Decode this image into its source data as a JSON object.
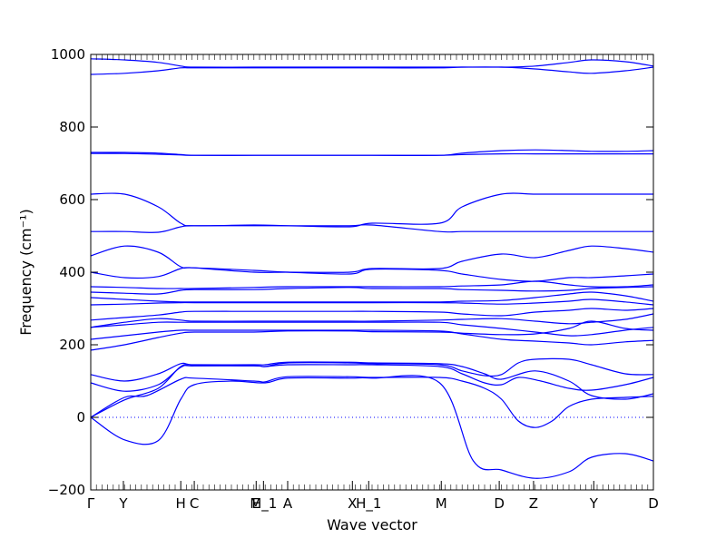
{
  "chart_data": {
    "type": "line",
    "title": "",
    "xlabel": "Wave vector",
    "ylabel": "Frequency (cm⁻¹)",
    "ylim": [
      -200,
      1000
    ],
    "yticks": [
      -200,
      0,
      200,
      400,
      600,
      800,
      1000
    ],
    "ytick_labels": [
      "−200",
      "0",
      "200",
      "400",
      "600",
      "800",
      "1000"
    ],
    "grid": false,
    "line_color": "#0000ff",
    "zero_line_color": "#0000ff",
    "x_points": [
      {
        "label": "Γ",
        "x": 0.0
      },
      {
        "label": "Y",
        "x": 0.058
      },
      {
        "label": "H",
        "x": 0.16
      },
      {
        "label": "C",
        "x": 0.184
      },
      {
        "label": "E",
        "x": 0.294
      },
      {
        "label": "M_1",
        "x": 0.307
      },
      {
        "label": "A",
        "x": 0.35
      },
      {
        "label": "X",
        "x": 0.465
      },
      {
        "label": "H_1",
        "x": 0.494
      },
      {
        "label": "M",
        "x": 0.623
      },
      {
        "label": "D",
        "x": 0.726
      },
      {
        "label": "Z",
        "x": 0.787
      },
      {
        "label": "Y",
        "x": 0.894
      },
      {
        "label": "D",
        "x": 1.0
      }
    ],
    "series": [
      {
        "x": [
          0,
          0.06,
          0.12,
          0.16,
          0.184,
          0.25,
          0.31,
          0.35,
          0.46,
          0.5,
          0.62,
          0.68,
          0.73,
          0.79,
          0.85,
          0.89,
          0.95,
          1.0
        ],
        "values": [
          0,
          -62,
          -64,
          50,
          90,
          100,
          95,
          108,
          108,
          108,
          95,
          -120,
          -145,
          -168,
          -150,
          -110,
          -100,
          -120
        ]
      },
      {
        "x": [
          0,
          0.06,
          0.1,
          0.16,
          0.184,
          0.29,
          0.31,
          0.35,
          0.46,
          0.5,
          0.62,
          0.66,
          0.7,
          0.73,
          0.76,
          0.79,
          0.82,
          0.85,
          0.89,
          0.95,
          1.0
        ],
        "values": [
          0,
          55,
          60,
          105,
          108,
          100,
          98,
          112,
          112,
          110,
          110,
          100,
          80,
          50,
          -10,
          -28,
          -10,
          30,
          50,
          55,
          58
        ]
      },
      {
        "x": [
          0,
          0.06,
          0.12,
          0.16,
          0.184,
          0.29,
          0.31,
          0.35,
          0.46,
          0.5,
          0.62,
          0.66,
          0.7,
          0.73,
          0.76,
          0.8,
          0.85,
          0.89,
          0.95,
          1.0
        ],
        "values": [
          0,
          48,
          80,
          140,
          142,
          142,
          140,
          145,
          145,
          145,
          140,
          120,
          95,
          90,
          110,
          100,
          80,
          75,
          90,
          110
        ]
      },
      {
        "x": [
          0,
          0.06,
          0.12,
          0.16,
          0.184,
          0.29,
          0.31,
          0.35,
          0.46,
          0.5,
          0.62,
          0.66,
          0.7,
          0.73,
          0.76,
          0.79,
          0.85,
          0.89,
          0.95,
          1.0
        ],
        "values": [
          95,
          72,
          90,
          138,
          142,
          142,
          140,
          150,
          150,
          148,
          145,
          128,
          115,
          118,
          150,
          160,
          160,
          145,
          120,
          118
        ]
      },
      {
        "x": [
          0,
          0.06,
          0.12,
          0.16,
          0.184,
          0.29,
          0.31,
          0.35,
          0.46,
          0.5,
          0.62,
          0.66,
          0.7,
          0.73,
          0.79,
          0.85,
          0.89,
          0.95,
          1.0
        ],
        "values": [
          118,
          100,
          120,
          148,
          145,
          145,
          145,
          152,
          152,
          150,
          148,
          140,
          120,
          105,
          128,
          100,
          60,
          50,
          65
        ]
      },
      {
        "x": [
          0,
          0.06,
          0.12,
          0.16,
          0.184,
          0.29,
          0.35,
          0.46,
          0.5,
          0.62,
          0.66,
          0.73,
          0.79,
          0.85,
          0.89,
          0.95,
          1.0
        ],
        "values": [
          185,
          200,
          220,
          232,
          235,
          235,
          238,
          238,
          236,
          235,
          232,
          228,
          230,
          245,
          265,
          245,
          240
        ]
      },
      {
        "x": [
          0,
          0.06,
          0.12,
          0.16,
          0.184,
          0.29,
          0.35,
          0.46,
          0.5,
          0.62,
          0.66,
          0.73,
          0.79,
          0.85,
          0.89,
          0.95,
          1.0
        ],
        "values": [
          215,
          225,
          235,
          240,
          240,
          240,
          240,
          240,
          240,
          238,
          230,
          215,
          210,
          205,
          200,
          208,
          212
        ]
      },
      {
        "x": [
          0,
          0.06,
          0.12,
          0.16,
          0.184,
          0.29,
          0.35,
          0.46,
          0.5,
          0.62,
          0.66,
          0.73,
          0.79,
          0.85,
          0.89,
          0.95,
          1.0
        ],
        "values": [
          248,
          255,
          262,
          262,
          262,
          262,
          262,
          262,
          262,
          262,
          255,
          245,
          235,
          225,
          228,
          240,
          248
        ]
      },
      {
        "x": [
          0,
          0.06,
          0.12,
          0.16,
          0.184,
          0.29,
          0.35,
          0.46,
          0.5,
          0.62,
          0.66,
          0.73,
          0.79,
          0.85,
          0.89,
          0.95,
          1.0
        ],
        "values": [
          248,
          262,
          272,
          268,
          265,
          265,
          265,
          265,
          265,
          268,
          270,
          272,
          265,
          258,
          262,
          270,
          285
        ]
      },
      {
        "x": [
          0,
          0.06,
          0.12,
          0.16,
          0.184,
          0.29,
          0.35,
          0.46,
          0.5,
          0.62,
          0.66,
          0.73,
          0.79,
          0.85,
          0.89,
          0.95,
          1.0
        ],
        "values": [
          268,
          275,
          282,
          290,
          292,
          292,
          292,
          292,
          292,
          290,
          285,
          280,
          290,
          295,
          300,
          295,
          300
        ]
      },
      {
        "x": [
          0,
          0.06,
          0.12,
          0.16,
          0.184,
          0.29,
          0.35,
          0.46,
          0.5,
          0.62,
          0.66,
          0.73,
          0.79,
          0.85,
          0.89,
          0.95,
          1.0
        ],
        "values": [
          310,
          312,
          315,
          316,
          316,
          316,
          316,
          316,
          316,
          316,
          315,
          312,
          315,
          320,
          325,
          318,
          310
        ]
      },
      {
        "x": [
          0,
          0.06,
          0.12,
          0.16,
          0.184,
          0.29,
          0.35,
          0.46,
          0.5,
          0.62,
          0.66,
          0.73,
          0.79,
          0.85,
          0.89,
          0.95,
          1.0
        ],
        "values": [
          330,
          325,
          320,
          318,
          318,
          318,
          318,
          318,
          318,
          318,
          320,
          322,
          330,
          340,
          345,
          335,
          320
        ]
      },
      {
        "x": [
          0,
          0.06,
          0.12,
          0.16,
          0.184,
          0.29,
          0.35,
          0.46,
          0.5,
          0.62,
          0.66,
          0.73,
          0.79,
          0.85,
          0.89,
          0.95,
          1.0
        ],
        "values": [
          345,
          342,
          340,
          350,
          352,
          352,
          355,
          358,
          355,
          355,
          352,
          350,
          348,
          350,
          355,
          358,
          360
        ]
      },
      {
        "x": [
          0,
          0.06,
          0.12,
          0.16,
          0.184,
          0.29,
          0.35,
          0.46,
          0.5,
          0.62,
          0.66,
          0.73,
          0.79,
          0.85,
          0.89,
          0.95,
          1.0
        ],
        "values": [
          360,
          358,
          355,
          355,
          355,
          358,
          360,
          360,
          360,
          360,
          362,
          365,
          375,
          365,
          360,
          360,
          365
        ]
      },
      {
        "x": [
          0,
          0.06,
          0.12,
          0.16,
          0.184,
          0.29,
          0.35,
          0.46,
          0.5,
          0.62,
          0.66,
          0.73,
          0.79,
          0.85,
          0.89,
          0.95,
          1.0
        ],
        "values": [
          400,
          385,
          388,
          410,
          412,
          405,
          400,
          395,
          408,
          405,
          395,
          380,
          375,
          385,
          385,
          390,
          395
        ]
      },
      {
        "x": [
          0,
          0.06,
          0.12,
          0.16,
          0.184,
          0.29,
          0.35,
          0.46,
          0.5,
          0.62,
          0.66,
          0.73,
          0.79,
          0.85,
          0.89,
          0.95,
          1.0
        ],
        "values": [
          445,
          472,
          455,
          415,
          412,
          400,
          400,
          400,
          410,
          410,
          430,
          450,
          440,
          460,
          472,
          465,
          455
        ]
      },
      {
        "x": [
          0,
          0.06,
          0.12,
          0.16,
          0.184,
          0.29,
          0.35,
          0.46,
          0.5,
          0.62,
          0.66,
          0.73,
          0.79,
          0.85,
          0.89,
          0.95,
          1.0
        ],
        "values": [
          512,
          512,
          510,
          525,
          528,
          528,
          528,
          528,
          530,
          512,
          512,
          512,
          512,
          512,
          512,
          512,
          512
        ]
      },
      {
        "x": [
          0,
          0.06,
          0.12,
          0.16,
          0.184,
          0.29,
          0.35,
          0.46,
          0.5,
          0.62,
          0.66,
          0.73,
          0.79,
          0.85,
          0.89,
          0.95,
          1.0
        ],
        "values": [
          615,
          615,
          580,
          535,
          528,
          530,
          528,
          525,
          535,
          535,
          580,
          615,
          615,
          615,
          615,
          615,
          615
        ]
      },
      {
        "x": [
          0,
          0.06,
          0.12,
          0.16,
          0.184,
          0.29,
          0.35,
          0.46,
          0.5,
          0.62,
          0.66,
          0.73,
          0.79,
          0.85,
          0.89,
          0.95,
          1.0
        ],
        "values": [
          727,
          727,
          725,
          723,
          722,
          722,
          722,
          722,
          722,
          722,
          724,
          726,
          726,
          726,
          726,
          726,
          726
        ]
      },
      {
        "x": [
          0,
          0.06,
          0.12,
          0.16,
          0.184,
          0.29,
          0.35,
          0.46,
          0.5,
          0.62,
          0.66,
          0.73,
          0.79,
          0.85,
          0.89,
          0.95,
          1.0
        ],
        "values": [
          730,
          730,
          728,
          724,
          722,
          722,
          722,
          722,
          722,
          722,
          728,
          735,
          737,
          735,
          733,
          733,
          735
        ]
      },
      {
        "x": [
          0,
          0.06,
          0.12,
          0.16,
          0.184,
          0.29,
          0.35,
          0.46,
          0.5,
          0.62,
          0.66,
          0.73,
          0.79,
          0.85,
          0.89,
          0.95,
          1.0
        ],
        "values": [
          945,
          948,
          955,
          963,
          963,
          963,
          963,
          963,
          963,
          963,
          965,
          965,
          960,
          952,
          948,
          955,
          965
        ]
      },
      {
        "x": [
          0,
          0.06,
          0.12,
          0.16,
          0.184,
          0.29,
          0.35,
          0.46,
          0.5,
          0.62,
          0.66,
          0.73,
          0.79,
          0.85,
          0.89,
          0.95,
          1.0
        ],
        "values": [
          988,
          985,
          978,
          968,
          965,
          965,
          965,
          965,
          965,
          965,
          965,
          965,
          968,
          978,
          985,
          980,
          968
        ]
      }
    ]
  }
}
